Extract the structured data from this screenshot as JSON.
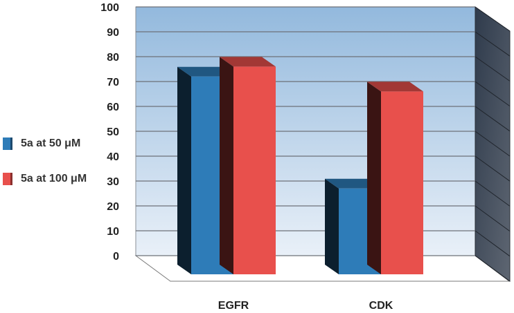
{
  "chart_data": {
    "type": "bar",
    "categories": [
      "EGFR",
      "CDK"
    ],
    "series": [
      {
        "name": "5a at 50 μM",
        "values": [
          72,
          27
        ],
        "color": "#2e7cb8"
      },
      {
        "name": "5a at 100 μM",
        "values": [
          76,
          66
        ],
        "color": "#e8504c"
      }
    ],
    "ylim": [
      0,
      100
    ],
    "yticks": [
      0,
      10,
      20,
      30,
      40,
      50,
      60,
      70,
      80,
      90,
      100
    ],
    "grid": true,
    "legend_position": "left",
    "background_gradient": [
      "#9bbfdf",
      "#e6eff8"
    ]
  }
}
